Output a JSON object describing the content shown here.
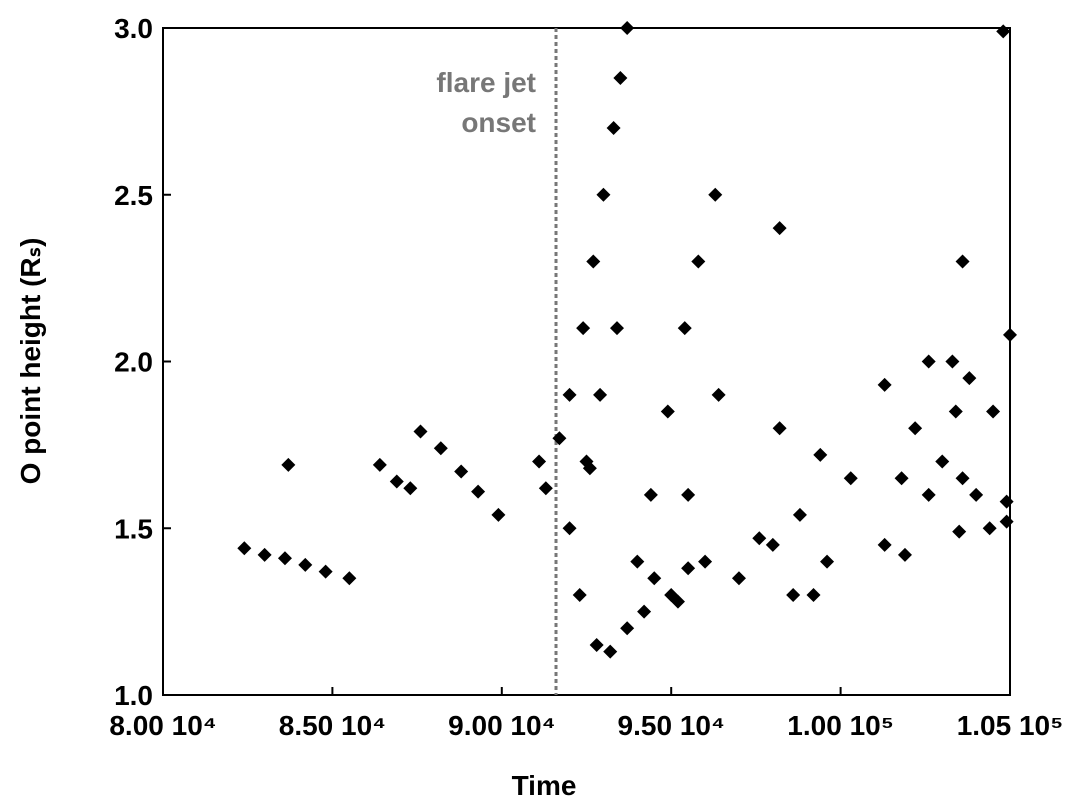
{
  "chart_data": {
    "type": "scatter",
    "x_label": "Time",
    "y_label": "O point height (Rₛ)",
    "annotation_lines": [
      "flare jet",
      "onset"
    ],
    "annotation_color": "#777777",
    "vline": 91600,
    "color": "#000000",
    "xlim": [
      80000,
      105000
    ],
    "ylim": [
      1.0,
      3.0
    ],
    "xticks": [
      {
        "value": 80000,
        "label": "8.00 10⁴"
      },
      {
        "value": 85000,
        "label": "8.50 10⁴"
      },
      {
        "value": 90000,
        "label": "9.00 10⁴"
      },
      {
        "value": 95000,
        "label": "9.50 10⁴"
      },
      {
        "value": 100000,
        "label": "1.00 10⁵"
      },
      {
        "value": 105000,
        "label": "1.05 10⁵"
      }
    ],
    "yticks": [
      {
        "value": 1,
        "label": "1.0"
      },
      1.5,
      {
        "value": 2,
        "label": "2.0"
      },
      2.5,
      {
        "value": 3,
        "label": "3.0"
      }
    ],
    "x": [
      82400,
      83000,
      83600,
      84200,
      84800,
      85500,
      83700,
      86400,
      86900,
      87300,
      87600,
      88200,
      88800,
      89300,
      89900,
      91100,
      91300,
      91700,
      92000,
      92400,
      92700,
      93000,
      93300,
      93500,
      93700,
      92000,
      92500,
      92900,
      93400,
      92300,
      92800,
      93200,
      93700,
      94200,
      94400,
      94900,
      95400,
      95800,
      96300,
      95500,
      96400,
      94000,
      94500,
      95000,
      95500,
      96000,
      95200,
      97600,
      98200,
      98200,
      98000,
      98600,
      99200,
      99600,
      100300,
      101300,
      101800,
      102200,
      102600,
      103000,
      103400,
      103800,
      104000,
      102600,
      103300,
      103600,
      103600,
      104500,
      105000,
      104800,
      104900,
      104900,
      103500,
      104400,
      92600,
      98800,
      99400,
      101300,
      101900,
      97000
    ],
    "y": [
      1.44,
      1.42,
      1.41,
      1.39,
      1.37,
      1.35,
      1.69,
      1.69,
      1.64,
      1.62,
      1.79,
      1.74,
      1.67,
      1.61,
      1.54,
      1.7,
      1.62,
      1.77,
      1.9,
      2.1,
      2.3,
      2.5,
      2.7,
      2.85,
      3.0,
      1.5,
      1.7,
      1.9,
      2.1,
      1.3,
      1.15,
      1.13,
      1.2,
      1.25,
      1.6,
      1.85,
      2.1,
      2.3,
      2.5,
      1.6,
      1.9,
      1.4,
      1.35,
      1.3,
      1.38,
      1.4,
      1.28,
      1.47,
      1.8,
      2.4,
      1.45,
      1.3,
      1.3,
      1.4,
      1.65,
      1.93,
      1.65,
      1.8,
      2.0,
      1.7,
      1.85,
      1.95,
      1.6,
      1.6,
      2.0,
      2.3,
      1.65,
      1.85,
      2.08,
      2.99,
      1.58,
      1.52,
      1.49,
      1.5,
      1.68,
      1.54,
      1.72,
      1.45,
      1.42,
      1.35
    ]
  }
}
